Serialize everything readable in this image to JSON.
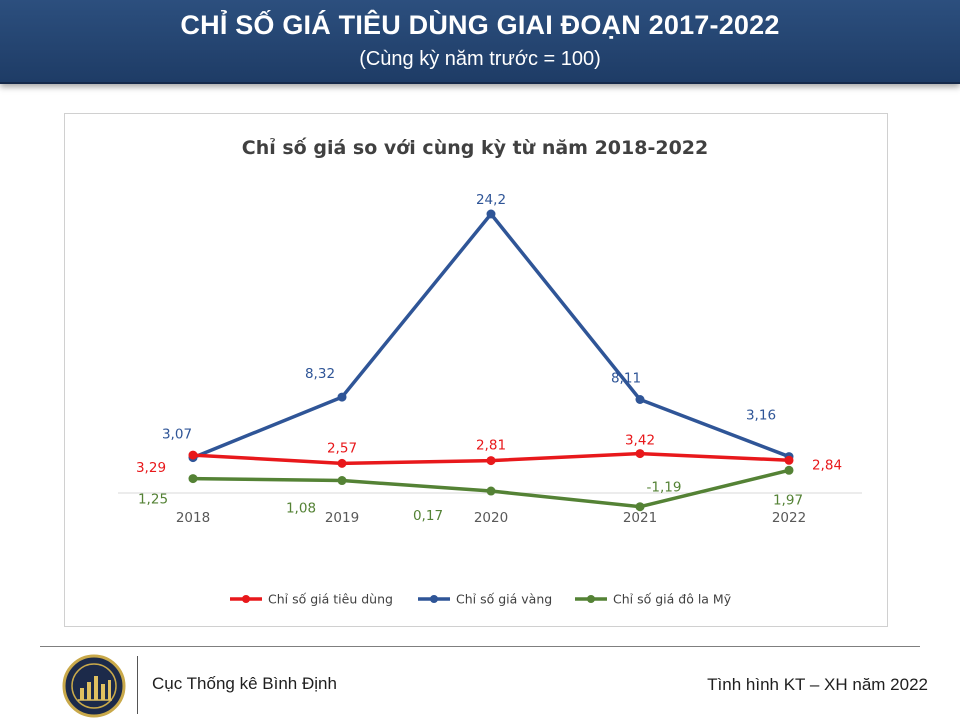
{
  "banner": {
    "title": "CHỈ SỐ GIÁ TIÊU DÙNG GIAI ĐOẠN 2017-2022",
    "subtitle": "(Cùng kỳ năm trước = 100)"
  },
  "chart_data": {
    "type": "line",
    "title": "Chỉ số giá so với cùng kỳ từ năm 2018-2022",
    "xlabel": "",
    "ylabel": "",
    "categories": [
      "2018",
      "2019",
      "2020",
      "2021",
      "2022"
    ],
    "ylim": [
      -2,
      25
    ],
    "grid": false,
    "legend_position": "bottom",
    "series": [
      {
        "name": "Chỉ số giá tiêu dùng",
        "color": "#e8181b",
        "values": [
          3.29,
          2.57,
          2.81,
          3.42,
          2.84
        ],
        "labels": [
          "3,29",
          "2,57",
          "2,81",
          "3,42",
          "2,84"
        ]
      },
      {
        "name": "Chỉ số giá vàng",
        "color": "#2f5597",
        "values": [
          3.07,
          8.32,
          24.2,
          8.11,
          3.16
        ],
        "labels": [
          "3,07",
          "8,32",
          "24,2",
          "8,11",
          "3,16"
        ]
      },
      {
        "name": "Chỉ số giá đô la Mỹ",
        "color": "#548235",
        "values": [
          1.25,
          1.08,
          0.17,
          -1.19,
          1.97
        ],
        "labels": [
          "1,25",
          "1,08",
          "0,17",
          "-1,19",
          "1,97"
        ]
      }
    ]
  },
  "footer": {
    "left_text": "Cục Thống kê Bình Định",
    "right_text": "Tình hình KT – XH năm 2022"
  },
  "logo": {
    "icon": "statistics-office-emblem-icon"
  }
}
